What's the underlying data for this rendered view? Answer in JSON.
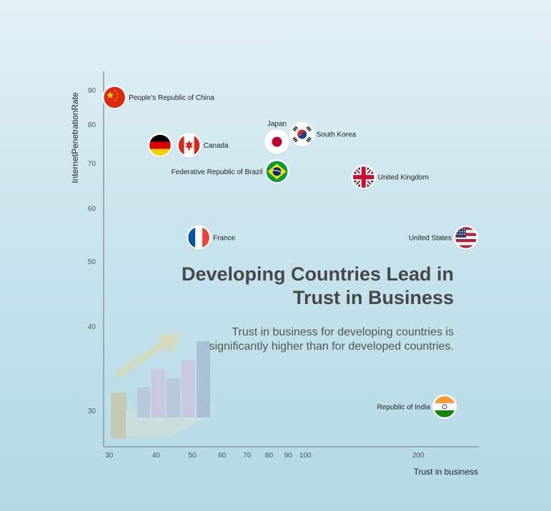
{
  "annotation": {
    "title_lines": [
      "Developing Countries Lead in",
      "Trust in Business"
    ],
    "subtitle_lines": [
      "Trust in business for developing countries is",
      "significantly higher than for developed countries."
    ]
  },
  "icons": {
    "decoration": "hand-holding-bar-chart-icon"
  },
  "colors": {
    "axis": "#8a9aa0",
    "text_dark": "#474747"
  },
  "chart_data": {
    "type": "scatter",
    "xlabel": "Trust in business",
    "ylabel": "InternetPenetrationRate",
    "xscale": "log",
    "yscale": "log",
    "xlim": [
      29,
      290
    ],
    "ylim": [
      26.5,
      96
    ],
    "xticks": [
      30,
      40,
      50,
      60,
      70,
      80,
      90,
      100,
      200
    ],
    "yticks": [
      30,
      40,
      50,
      60,
      70,
      80,
      90
    ],
    "grid": false,
    "points": [
      {
        "label": "People's Republic of China",
        "x": 31,
        "y": 87.8,
        "flag": "china-flag-icon",
        "label_pos": "right"
      },
      {
        "label": "",
        "x": 41,
        "y": 74.5,
        "flag": "germany-flag-icon",
        "label_pos": "none"
      },
      {
        "label": "Canada",
        "x": 49,
        "y": 74.5,
        "flag": "canada-flag-icon",
        "label_pos": "right"
      },
      {
        "label": "Japan",
        "x": 84,
        "y": 75.4,
        "flag": "japan-flag-icon",
        "label_pos": "top"
      },
      {
        "label": "South Korea",
        "x": 98,
        "y": 77.4,
        "flag": "south-korea-flag-icon",
        "label_pos": "right"
      },
      {
        "label": "Federative Republic of Brazil",
        "x": 84,
        "y": 68.1,
        "flag": "brazil-flag-icon",
        "label_pos": "left"
      },
      {
        "label": "United Kingdom",
        "x": 143,
        "y": 66.8,
        "flag": "uk-flag-icon",
        "label_pos": "right"
      },
      {
        "label": "France",
        "x": 52,
        "y": 54.3,
        "flag": "france-flag-icon",
        "label_pos": "right"
      },
      {
        "label": "United States",
        "x": 268,
        "y": 54.3,
        "flag": "usa-flag-icon",
        "label_pos": "left"
      },
      {
        "label": "Republic of India",
        "x": 235,
        "y": 30.4,
        "flag": "india-flag-icon",
        "label_pos": "left"
      }
    ]
  }
}
